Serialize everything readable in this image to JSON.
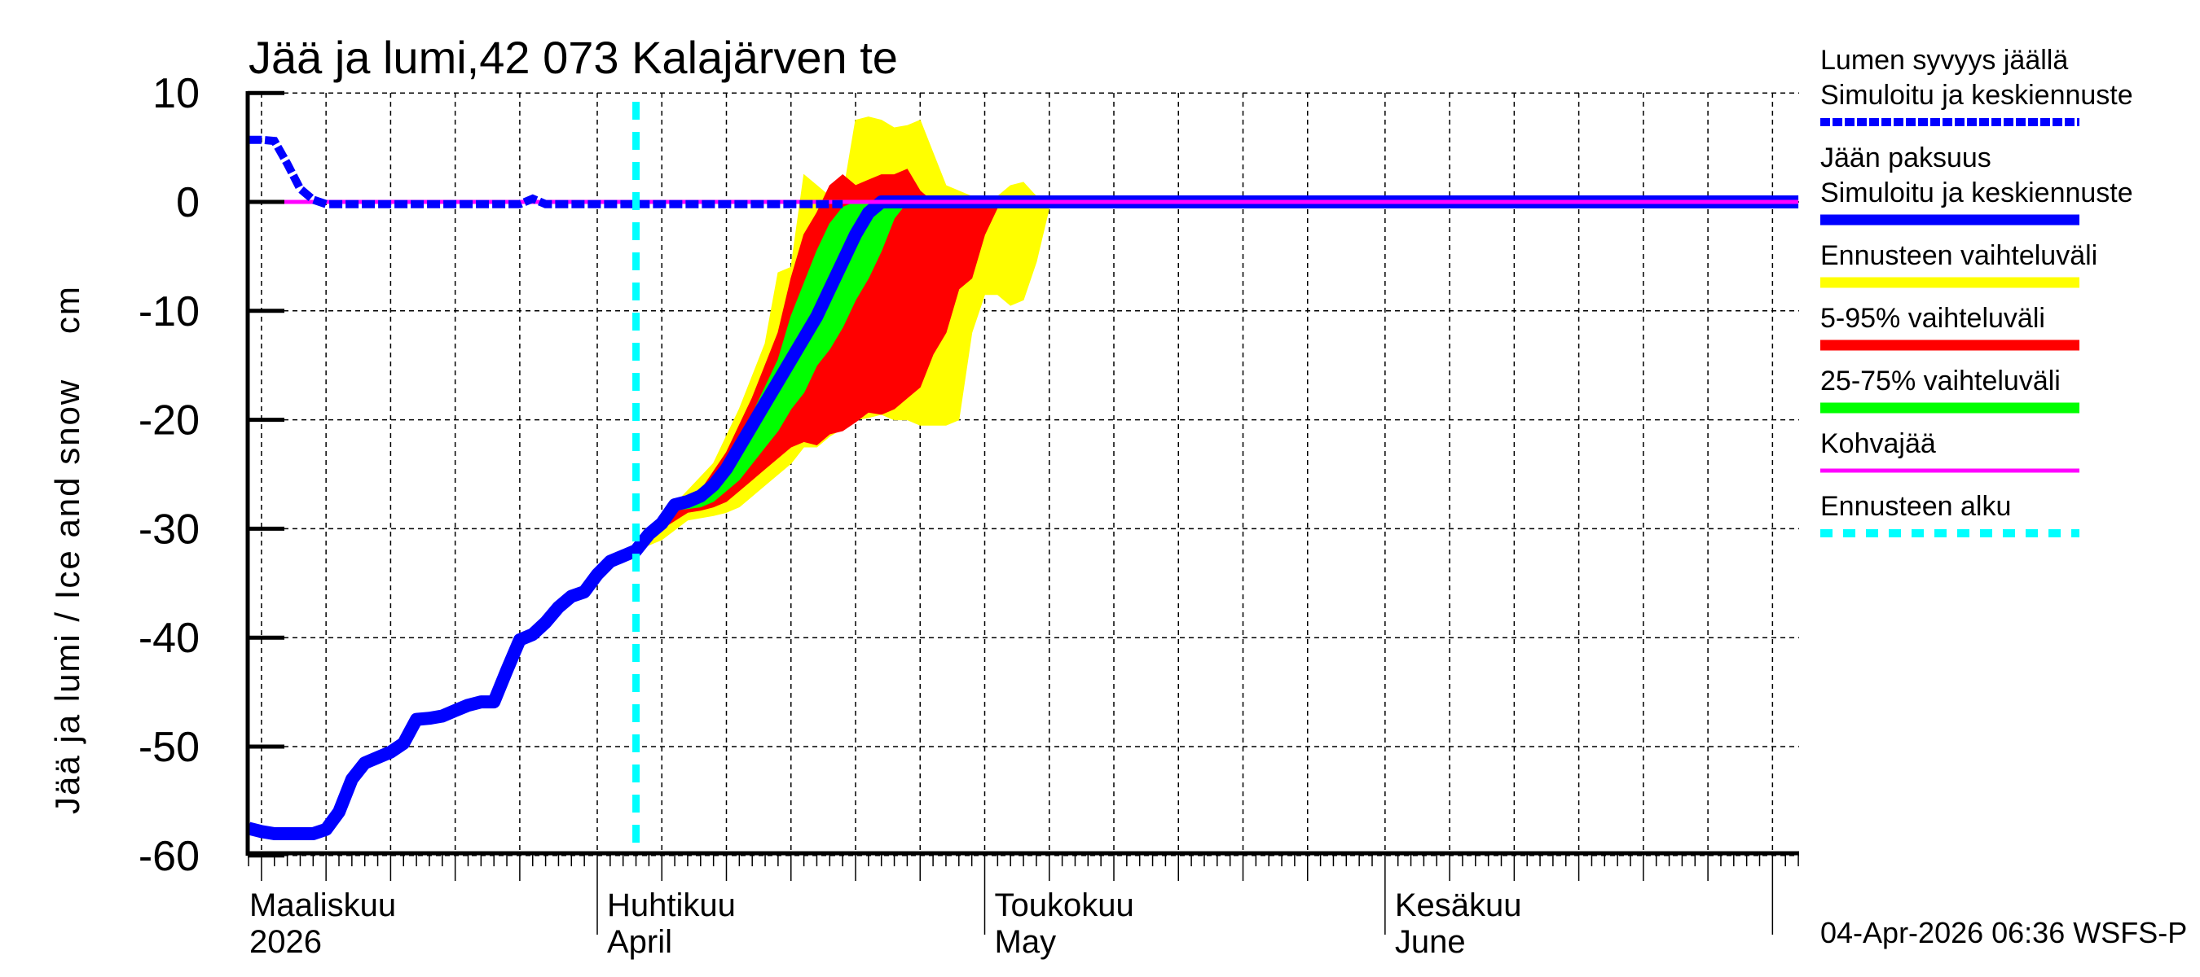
{
  "chart_data": {
    "type": "area",
    "title": "Jää ja lumi,42 073 Kalajärven te",
    "xlabel": "",
    "ylabel": "Jää ja lumi / Ice and snow    cm",
    "ylim": [
      -60,
      10
    ],
    "yticks": [
      10,
      0,
      -10,
      -20,
      -30,
      -40,
      -50,
      -60
    ],
    "ytick_labels": [
      "10",
      "0",
      "-10",
      "-20",
      "-30",
      "-40",
      "-50",
      "-60"
    ],
    "grid": true,
    "legend_position": "right",
    "x_unit": "day of year offset from 1 March 2026 (0 = 1 Mar)",
    "xlim": [
      4,
      124
    ],
    "month_labels": [
      {
        "day": 0,
        "fi": "Maaliskuu",
        "en": "2026"
      },
      {
        "day": 31,
        "fi": "Huhtikuu",
        "en": "April"
      },
      {
        "day": 61,
        "fi": "Toukokuu",
        "en": "May"
      },
      {
        "day": 92,
        "fi": "Kesäkuu",
        "en": "June"
      }
    ],
    "forecast_start_day": 34,
    "series": [
      {
        "name": "Lumen syvyys jäällä — Simuloitu ja keskiennuste",
        "style": "dashed",
        "color": "#0000ff",
        "points": [
          [
            4,
            5.7
          ],
          [
            5,
            5.7
          ],
          [
            6,
            5.6
          ],
          [
            7,
            3.5
          ],
          [
            8,
            1.2
          ],
          [
            9,
            0.2
          ],
          [
            10,
            -0.2
          ],
          [
            15,
            -0.2
          ],
          [
            20,
            -0.2
          ],
          [
            25,
            -0.2
          ],
          [
            26,
            0.3
          ],
          [
            27,
            -0.2
          ],
          [
            34,
            -0.2
          ],
          [
            45,
            -0.2
          ],
          [
            50,
            -0.2
          ]
        ]
      },
      {
        "name": "Jään paksuus — Simuloitu ja keskiennuste",
        "style": "solid",
        "color": "#0000ff",
        "points": [
          [
            4,
            -57.5
          ],
          [
            5,
            -57.8
          ],
          [
            6,
            -58
          ],
          [
            7,
            -58
          ],
          [
            8,
            -58
          ],
          [
            9,
            -58
          ],
          [
            10,
            -57.6
          ],
          [
            11,
            -56
          ],
          [
            12,
            -53
          ],
          [
            13,
            -51.5
          ],
          [
            14,
            -51
          ],
          [
            15,
            -50.5
          ],
          [
            16,
            -49.7
          ],
          [
            17,
            -47.5
          ],
          [
            18,
            -47.4
          ],
          [
            19,
            -47.2
          ],
          [
            20,
            -46.7
          ],
          [
            21,
            -46.2
          ],
          [
            22,
            -45.9
          ],
          [
            23,
            -45.9
          ],
          [
            24,
            -43
          ],
          [
            25,
            -40.2
          ],
          [
            26,
            -39.7
          ],
          [
            27,
            -38.6
          ],
          [
            28,
            -37.2
          ],
          [
            29,
            -36.2
          ],
          [
            30,
            -35.8
          ],
          [
            31,
            -34.2
          ],
          [
            32,
            -33
          ],
          [
            33,
            -32.5
          ],
          [
            34,
            -32
          ],
          [
            35,
            -30.5
          ],
          [
            36,
            -29.5
          ],
          [
            37,
            -27.8
          ],
          [
            38,
            -27.5
          ],
          [
            39,
            -27
          ],
          [
            40,
            -26
          ],
          [
            41,
            -24.5
          ],
          [
            42,
            -22.5
          ],
          [
            43,
            -20.5
          ],
          [
            44,
            -18.5
          ],
          [
            45,
            -16.5
          ],
          [
            46,
            -14.5
          ],
          [
            47,
            -12.5
          ],
          [
            48,
            -10.5
          ],
          [
            49,
            -8
          ],
          [
            50,
            -5.5
          ],
          [
            51,
            -3
          ],
          [
            52,
            -1
          ],
          [
            53,
            0
          ],
          [
            60,
            0
          ],
          [
            124,
            0
          ]
        ]
      },
      {
        "name": "Kohvajää",
        "style": "solid",
        "color": "#ff00ff",
        "points": [
          [
            4,
            0
          ],
          [
            124,
            0
          ]
        ]
      }
    ],
    "bands": [
      {
        "name": "Ennusteen vaihteluväli",
        "color": "#ffff00",
        "upper": [
          [
            34,
            -32
          ],
          [
            36,
            -29
          ],
          [
            38,
            -26.5
          ],
          [
            40,
            -24
          ],
          [
            42,
            -19
          ],
          [
            43,
            -16
          ],
          [
            44,
            -13
          ],
          [
            45,
            -6.5
          ],
          [
            46,
            -6
          ],
          [
            47,
            2.5
          ],
          [
            48,
            1.5
          ],
          [
            49,
            0.5
          ],
          [
            50,
            0.5
          ],
          [
            51,
            7.5
          ],
          [
            52,
            7.8
          ],
          [
            53,
            7.5
          ],
          [
            54,
            6.8
          ],
          [
            55,
            7
          ],
          [
            56,
            7.5
          ],
          [
            57,
            4.5
          ],
          [
            58,
            1.5
          ],
          [
            59,
            1
          ],
          [
            60,
            0.5
          ],
          [
            61,
            -0.3
          ],
          [
            62,
            0.5
          ],
          [
            63,
            1.5
          ],
          [
            64,
            1.8
          ],
          [
            65,
            0.5
          ],
          [
            66,
            -0.5
          ]
        ],
        "lower": [
          [
            66,
            -0.5
          ],
          [
            65,
            -5.5
          ],
          [
            64,
            -9
          ],
          [
            63,
            -9.5
          ],
          [
            62,
            -8.5
          ],
          [
            61,
            -8.5
          ],
          [
            60,
            -12
          ],
          [
            59,
            -20
          ],
          [
            58,
            -20.5
          ],
          [
            57,
            -20.5
          ],
          [
            56,
            -20.5
          ],
          [
            55,
            -20
          ],
          [
            54,
            -20
          ],
          [
            53,
            -19.5
          ],
          [
            52,
            -19.8
          ],
          [
            51,
            -20
          ],
          [
            50,
            -20.8
          ],
          [
            49,
            -21.5
          ],
          [
            48,
            -22.5
          ],
          [
            47,
            -22.5
          ],
          [
            46,
            -24
          ],
          [
            45,
            -25
          ],
          [
            44,
            -26
          ],
          [
            43,
            -27
          ],
          [
            42,
            -28
          ],
          [
            41,
            -28.5
          ],
          [
            40,
            -28.8
          ],
          [
            39,
            -29
          ],
          [
            38,
            -29.2
          ],
          [
            36,
            -31
          ],
          [
            34,
            -32
          ]
        ]
      },
      {
        "name": "5-95% vaihteluväli",
        "color": "#ff0000",
        "upper": [
          [
            34,
            -32
          ],
          [
            36,
            -29
          ],
          [
            37,
            -27.5
          ],
          [
            39,
            -26.5
          ],
          [
            41,
            -23
          ],
          [
            43,
            -18
          ],
          [
            45,
            -12
          ],
          [
            46,
            -7
          ],
          [
            47,
            -3
          ],
          [
            48,
            -1
          ],
          [
            49,
            1.5
          ],
          [
            50,
            2.5
          ],
          [
            51,
            1.5
          ],
          [
            52,
            2
          ],
          [
            53,
            2.5
          ],
          [
            54,
            2.5
          ],
          [
            55,
            3
          ],
          [
            56,
            1
          ],
          [
            57,
            0
          ],
          [
            58,
            0
          ],
          [
            59,
            -0.2
          ],
          [
            60,
            0
          ],
          [
            61,
            -0.5
          ],
          [
            62,
            -0.5
          ]
        ],
        "lower": [
          [
            62,
            -0.5
          ],
          [
            61,
            -3
          ],
          [
            60,
            -7
          ],
          [
            59,
            -8
          ],
          [
            58,
            -12
          ],
          [
            57,
            -14
          ],
          [
            56,
            -17
          ],
          [
            55,
            -18
          ],
          [
            54,
            -19
          ],
          [
            53,
            -19.5
          ],
          [
            52,
            -19.3
          ],
          [
            51,
            -20.2
          ],
          [
            50,
            -21
          ],
          [
            49,
            -21.3
          ],
          [
            48,
            -22.3
          ],
          [
            47,
            -22
          ],
          [
            46,
            -22.5
          ],
          [
            45,
            -23.5
          ],
          [
            44,
            -24.5
          ],
          [
            43,
            -25.5
          ],
          [
            42,
            -26.5
          ],
          [
            41,
            -27.5
          ],
          [
            40,
            -28
          ],
          [
            39,
            -28.3
          ],
          [
            38,
            -28.5
          ],
          [
            36,
            -30
          ],
          [
            34,
            -32
          ]
        ]
      },
      {
        "name": "25-75% vaihteluväli",
        "color": "#00ff00",
        "upper": [
          [
            37,
            -27.5
          ],
          [
            39,
            -26.5
          ],
          [
            40,
            -25.5
          ],
          [
            41,
            -23.5
          ],
          [
            42,
            -21.5
          ],
          [
            43,
            -19.5
          ],
          [
            44,
            -17
          ],
          [
            45,
            -14.5
          ],
          [
            46,
            -10.5
          ],
          [
            47,
            -7.5
          ],
          [
            48,
            -4.5
          ],
          [
            49,
            -2
          ],
          [
            50,
            -0.5
          ],
          [
            51,
            0
          ],
          [
            55,
            0
          ]
        ],
        "lower": [
          [
            55,
            0
          ],
          [
            54,
            -1.5
          ],
          [
            53,
            -4.5
          ],
          [
            52,
            -7
          ],
          [
            51,
            -9
          ],
          [
            50,
            -11.5
          ],
          [
            49,
            -13.5
          ],
          [
            48,
            -15
          ],
          [
            47,
            -17.5
          ],
          [
            46,
            -19
          ],
          [
            45,
            -21
          ],
          [
            44,
            -22.5
          ],
          [
            43,
            -24
          ],
          [
            42,
            -25.5
          ],
          [
            41,
            -26.5
          ],
          [
            40,
            -27.5
          ],
          [
            39,
            -28
          ],
          [
            37,
            -28.3
          ]
        ]
      }
    ]
  },
  "legend": {
    "items": [
      {
        "line1": "Lumen syvyys jäällä",
        "line2": "Simuloitu ja keskiennuste",
        "color": "#0000ff",
        "style": "dashed"
      },
      {
        "line1": "Jään paksuus",
        "line2": "Simuloitu ja keskiennuste",
        "color": "#0000ff",
        "style": "solid"
      },
      {
        "line1": "Ennusteen vaihteluväli",
        "line2": "",
        "color": "#ffff00",
        "style": "solid"
      },
      {
        "line1": "5-95% vaihteluväli",
        "line2": "",
        "color": "#ff0000",
        "style": "solid"
      },
      {
        "line1": "25-75% vaihteluväli",
        "line2": "",
        "color": "#00ff00",
        "style": "solid"
      },
      {
        "line1": "Kohvajää",
        "line2": "",
        "color": "#ff00ff",
        "style": "thin"
      },
      {
        "line1": "Ennusteen alku",
        "line2": "",
        "color": "#00ffff",
        "style": "dotted"
      }
    ]
  },
  "footer": {
    "timestamp": "04-Apr-2026 06:36 WSFS-P"
  },
  "colors": {
    "forecast_start": "#00ffff",
    "axis": "#000000",
    "grid": "#000000"
  }
}
